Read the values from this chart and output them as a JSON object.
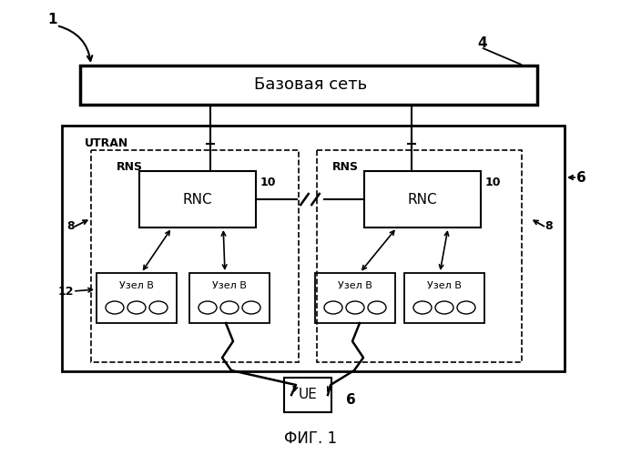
{
  "title": "ФИГ. 1",
  "background_color": "#ffffff",
  "label_1": "1",
  "label_4": "4",
  "label_6_ue": "6",
  "label_6_utran": "6",
  "label_8_left": "8",
  "label_8_right": "8",
  "label_10_left": "10",
  "label_10_right": "10",
  "label_12": "12",
  "text_base_network": "Базовая сеть",
  "text_utran": "UTRAN",
  "text_rns_left": "RNS",
  "text_rns_right": "RNS",
  "text_rnc": "RNC",
  "text_node_b": "Узел В",
  "text_ue": "UE"
}
